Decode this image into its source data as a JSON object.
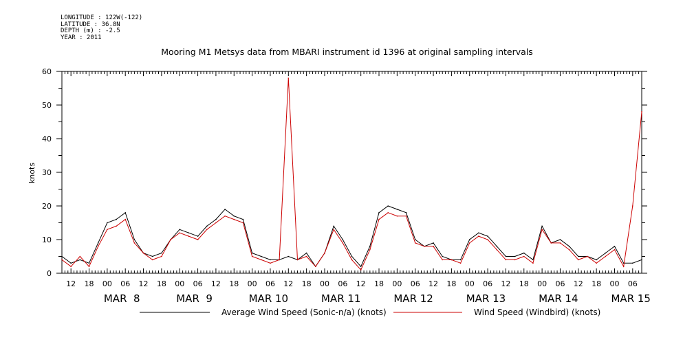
{
  "meta": {
    "longitude": "LONGITUDE : 122W(-122)",
    "latitude": "LATITUDE : 36.8N",
    "depth": "DEPTH (m) : -2.5",
    "year": "YEAR : 2011"
  },
  "chart_data": {
    "type": "line",
    "title": "Mooring M1 Metsys data from MBARI instrument id 1396 at original sampling intervals",
    "xlabel": "",
    "ylabel": "knots",
    "ylim": [
      0,
      60
    ],
    "yticks": [
      0,
      10,
      20,
      30,
      40,
      50,
      60
    ],
    "xlim_hours_note": "",
    "x_start": "2011-03-07T09:00",
    "x_end": "2011-03-15T09:00",
    "hour_tick_labels": [
      "12",
      "18",
      "00",
      "06",
      "12",
      "18",
      "00",
      "06",
      "12",
      "18",
      "00",
      "06",
      "12",
      "18",
      "00",
      "06",
      "12",
      "18",
      "00",
      "06",
      "12",
      "18",
      "00",
      "06",
      "12",
      "18",
      "00",
      "06",
      "12",
      "18",
      "00",
      "06"
    ],
    "day_labels": [
      "MAR  8",
      "MAR  9",
      "MAR 10",
      "MAR 11",
      "MAR 12",
      "MAR 13",
      "MAR 14",
      "MAR 15"
    ],
    "grid": false,
    "legend_position": "bottom",
    "series": [
      {
        "name": "Average Wind Speed (Sonic-n/a) (knots)",
        "color": "#000000",
        "x": [
          "2011-03-07T09:00",
          "2011-03-07T12:00",
          "2011-03-07T15:00",
          "2011-03-07T18:00",
          "2011-03-07T21:00",
          "2011-03-08T00:00",
          "2011-03-08T03:00",
          "2011-03-08T06:00",
          "2011-03-08T09:00",
          "2011-03-08T12:00",
          "2011-03-08T15:00",
          "2011-03-08T18:00",
          "2011-03-08T21:00",
          "2011-03-09T00:00",
          "2011-03-09T03:00",
          "2011-03-09T06:00",
          "2011-03-09T09:00",
          "2011-03-09T12:00",
          "2011-03-09T15:00",
          "2011-03-09T18:00",
          "2011-03-09T21:00",
          "2011-03-10T00:00",
          "2011-03-10T03:00",
          "2011-03-10T06:00",
          "2011-03-10T09:00",
          "2011-03-10T12:00",
          "2011-03-10T15:00",
          "2011-03-10T18:00",
          "2011-03-10T21:00",
          "2011-03-11T00:00",
          "2011-03-11T03:00",
          "2011-03-11T06:00",
          "2011-03-11T09:00",
          "2011-03-11T12:00",
          "2011-03-11T15:00",
          "2011-03-11T18:00",
          "2011-03-11T21:00",
          "2011-03-12T00:00",
          "2011-03-12T03:00",
          "2011-03-12T06:00",
          "2011-03-12T09:00",
          "2011-03-12T12:00",
          "2011-03-12T15:00",
          "2011-03-12T18:00",
          "2011-03-12T21:00",
          "2011-03-13T00:00",
          "2011-03-13T03:00",
          "2011-03-13T06:00",
          "2011-03-13T09:00",
          "2011-03-13T12:00",
          "2011-03-13T15:00",
          "2011-03-13T18:00",
          "2011-03-13T21:00",
          "2011-03-14T00:00",
          "2011-03-14T03:00",
          "2011-03-14T06:00",
          "2011-03-14T09:00",
          "2011-03-14T12:00",
          "2011-03-14T15:00",
          "2011-03-14T18:00",
          "2011-03-14T21:00",
          "2011-03-15T00:00",
          "2011-03-15T03:00",
          "2011-03-15T06:00",
          "2011-03-15T09:00"
        ],
        "values": [
          5,
          3,
          4,
          3,
          9,
          15,
          16,
          18,
          10,
          6,
          5,
          6,
          10,
          13,
          12,
          11,
          14,
          16,
          19,
          17,
          16,
          6,
          5,
          4,
          4,
          5,
          4,
          6,
          2,
          6,
          14,
          10,
          5,
          2,
          8,
          18,
          20,
          19,
          18,
          10,
          8,
          9,
          5,
          4,
          4,
          10,
          12,
          11,
          8,
          5,
          5,
          6,
          4,
          14,
          9,
          10,
          8,
          5,
          5,
          4,
          6,
          8,
          3,
          3,
          4
        ]
      },
      {
        "name": "Wind Speed (Windbird) (knots)",
        "color": "#cc0000",
        "x": [
          "2011-03-07T09:00",
          "2011-03-07T12:00",
          "2011-03-07T15:00",
          "2011-03-07T18:00",
          "2011-03-07T21:00",
          "2011-03-08T00:00",
          "2011-03-08T03:00",
          "2011-03-08T06:00",
          "2011-03-08T09:00",
          "2011-03-08T12:00",
          "2011-03-08T15:00",
          "2011-03-08T18:00",
          "2011-03-08T21:00",
          "2011-03-09T00:00",
          "2011-03-09T03:00",
          "2011-03-09T06:00",
          "2011-03-09T09:00",
          "2011-03-09T12:00",
          "2011-03-09T15:00",
          "2011-03-09T18:00",
          "2011-03-09T21:00",
          "2011-03-10T00:00",
          "2011-03-10T03:00",
          "2011-03-10T06:00",
          "2011-03-10T09:00",
          "2011-03-10T12:00",
          "2011-03-10T15:00",
          "2011-03-10T18:00",
          "2011-03-10T21:00",
          "2011-03-11T00:00",
          "2011-03-11T03:00",
          "2011-03-11T06:00",
          "2011-03-11T09:00",
          "2011-03-11T12:00",
          "2011-03-11T15:00",
          "2011-03-11T18:00",
          "2011-03-11T21:00",
          "2011-03-12T00:00",
          "2011-03-12T03:00",
          "2011-03-12T06:00",
          "2011-03-12T09:00",
          "2011-03-12T12:00",
          "2011-03-12T15:00",
          "2011-03-12T18:00",
          "2011-03-12T21:00",
          "2011-03-13T00:00",
          "2011-03-13T03:00",
          "2011-03-13T06:00",
          "2011-03-13T09:00",
          "2011-03-13T12:00",
          "2011-03-13T15:00",
          "2011-03-13T18:00",
          "2011-03-13T21:00",
          "2011-03-14T00:00",
          "2011-03-14T03:00",
          "2011-03-14T06:00",
          "2011-03-14T09:00",
          "2011-03-14T12:00",
          "2011-03-14T15:00",
          "2011-03-14T18:00",
          "2011-03-14T21:00",
          "2011-03-15T00:00",
          "2011-03-15T03:00",
          "2011-03-15T06:00",
          "2011-03-15T09:00"
        ],
        "values": [
          4,
          2,
          5,
          2,
          8,
          13,
          14,
          16,
          9,
          6,
          4,
          5,
          10,
          12,
          11,
          10,
          13,
          15,
          17,
          16,
          15,
          5,
          4,
          3,
          4,
          58,
          4,
          5,
          2,
          6,
          13,
          9,
          4,
          1,
          7,
          16,
          18,
          17,
          17,
          9,
          8,
          8,
          4,
          4,
          3,
          9,
          11,
          10,
          7,
          4,
          4,
          5,
          3,
          13,
          9,
          9,
          7,
          4,
          5,
          3,
          5,
          7,
          2,
          20,
          48
        ]
      }
    ]
  }
}
